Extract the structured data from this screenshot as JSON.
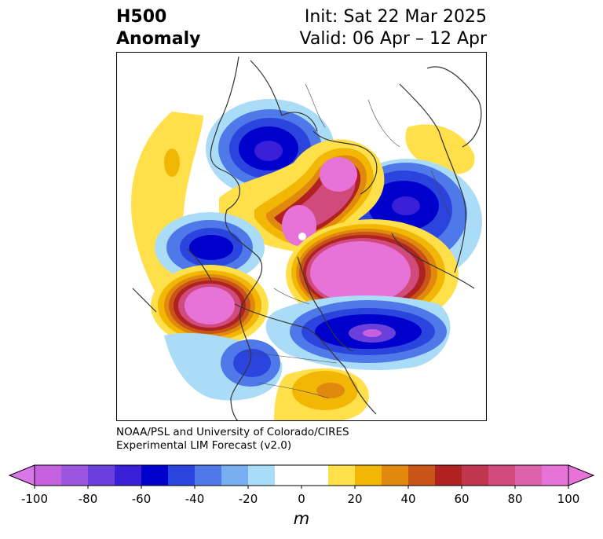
{
  "header": {
    "variable": "H500",
    "field": "Anomaly",
    "init": "Init: Sat 22 Mar 2025",
    "valid": "Valid: 06 Apr – 12 Apr"
  },
  "credit": {
    "line1": "NOAA/PSL and University of Colorado/CIRES",
    "line2": "Experimental LIM Forecast (v2.0)"
  },
  "colorbar": {
    "unit": "m",
    "ticks": [
      "-100",
      "-80",
      "-60",
      "-40",
      "-20",
      "0",
      "20",
      "40",
      "60",
      "80",
      "100"
    ],
    "bins": [
      {
        "range": [
          -100,
          -90
        ],
        "color": "#c661de"
      },
      {
        "range": [
          -90,
          -80
        ],
        "color": "#9b55de"
      },
      {
        "range": [
          -80,
          -70
        ],
        "color": "#6a3fdc"
      },
      {
        "range": [
          -70,
          -60
        ],
        "color": "#3a1fd6"
      },
      {
        "range": [
          -60,
          -50
        ],
        "color": "#0000cc"
      },
      {
        "range": [
          -50,
          -40
        ],
        "color": "#2a44dd"
      },
      {
        "range": [
          -40,
          -30
        ],
        "color": "#4f79e8"
      },
      {
        "range": [
          -30,
          -20
        ],
        "color": "#77aef0"
      },
      {
        "range": [
          -20,
          -10
        ],
        "color": "#aadcf8"
      },
      {
        "range": [
          -10,
          10
        ],
        "color": "#ffffff"
      },
      {
        "range": [
          10,
          20
        ],
        "color": "#ffe04a"
      },
      {
        "range": [
          20,
          30
        ],
        "color": "#f2b705"
      },
      {
        "range": [
          30,
          40
        ],
        "color": "#e0890e"
      },
      {
        "range": [
          40,
          50
        ],
        "color": "#c95417"
      },
      {
        "range": [
          50,
          60
        ],
        "color": "#b02222"
      },
      {
        "range": [
          60,
          70
        ],
        "color": "#c0364f"
      },
      {
        "range": [
          70,
          80
        ],
        "color": "#d04a7c"
      },
      {
        "range": [
          80,
          90
        ],
        "color": "#dc62ab"
      },
      {
        "range": [
          90,
          100
        ],
        "color": "#e873d8"
      }
    ],
    "under_color": "#d878e8",
    "over_color": "#e873d8"
  },
  "anomaly_centers": [
    {
      "name": "Alaska / NE Pacific low",
      "sign": "negative",
      "peak_m": -70
    },
    {
      "name": "Hudson Bay / Canadian Arctic high",
      "sign": "positive",
      "peak_m": 100
    },
    {
      "name": "Scandinavia / Europe low",
      "sign": "negative",
      "peak_m": -60
    },
    {
      "name": "North Pacific low",
      "sign": "negative",
      "peak_m": -60
    },
    {
      "name": "North Pacific high",
      "sign": "positive",
      "peak_m": 100
    },
    {
      "name": "Siberian high",
      "sign": "positive",
      "peak_m": 100
    },
    {
      "name": "Greenland high",
      "sign": "positive",
      "peak_m": 100
    },
    {
      "name": "North Atlantic low",
      "sign": "negative",
      "peak_m": -80
    },
    {
      "name": "Western US low",
      "sign": "negative",
      "peak_m": -50
    },
    {
      "name": "Southeast US high",
      "sign": "positive",
      "peak_m": 40
    },
    {
      "name": "Central Pacific high",
      "sign": "positive",
      "peak_m": 20
    },
    {
      "name": "Eastern Europe high",
      "sign": "positive",
      "peak_m": 20
    }
  ]
}
